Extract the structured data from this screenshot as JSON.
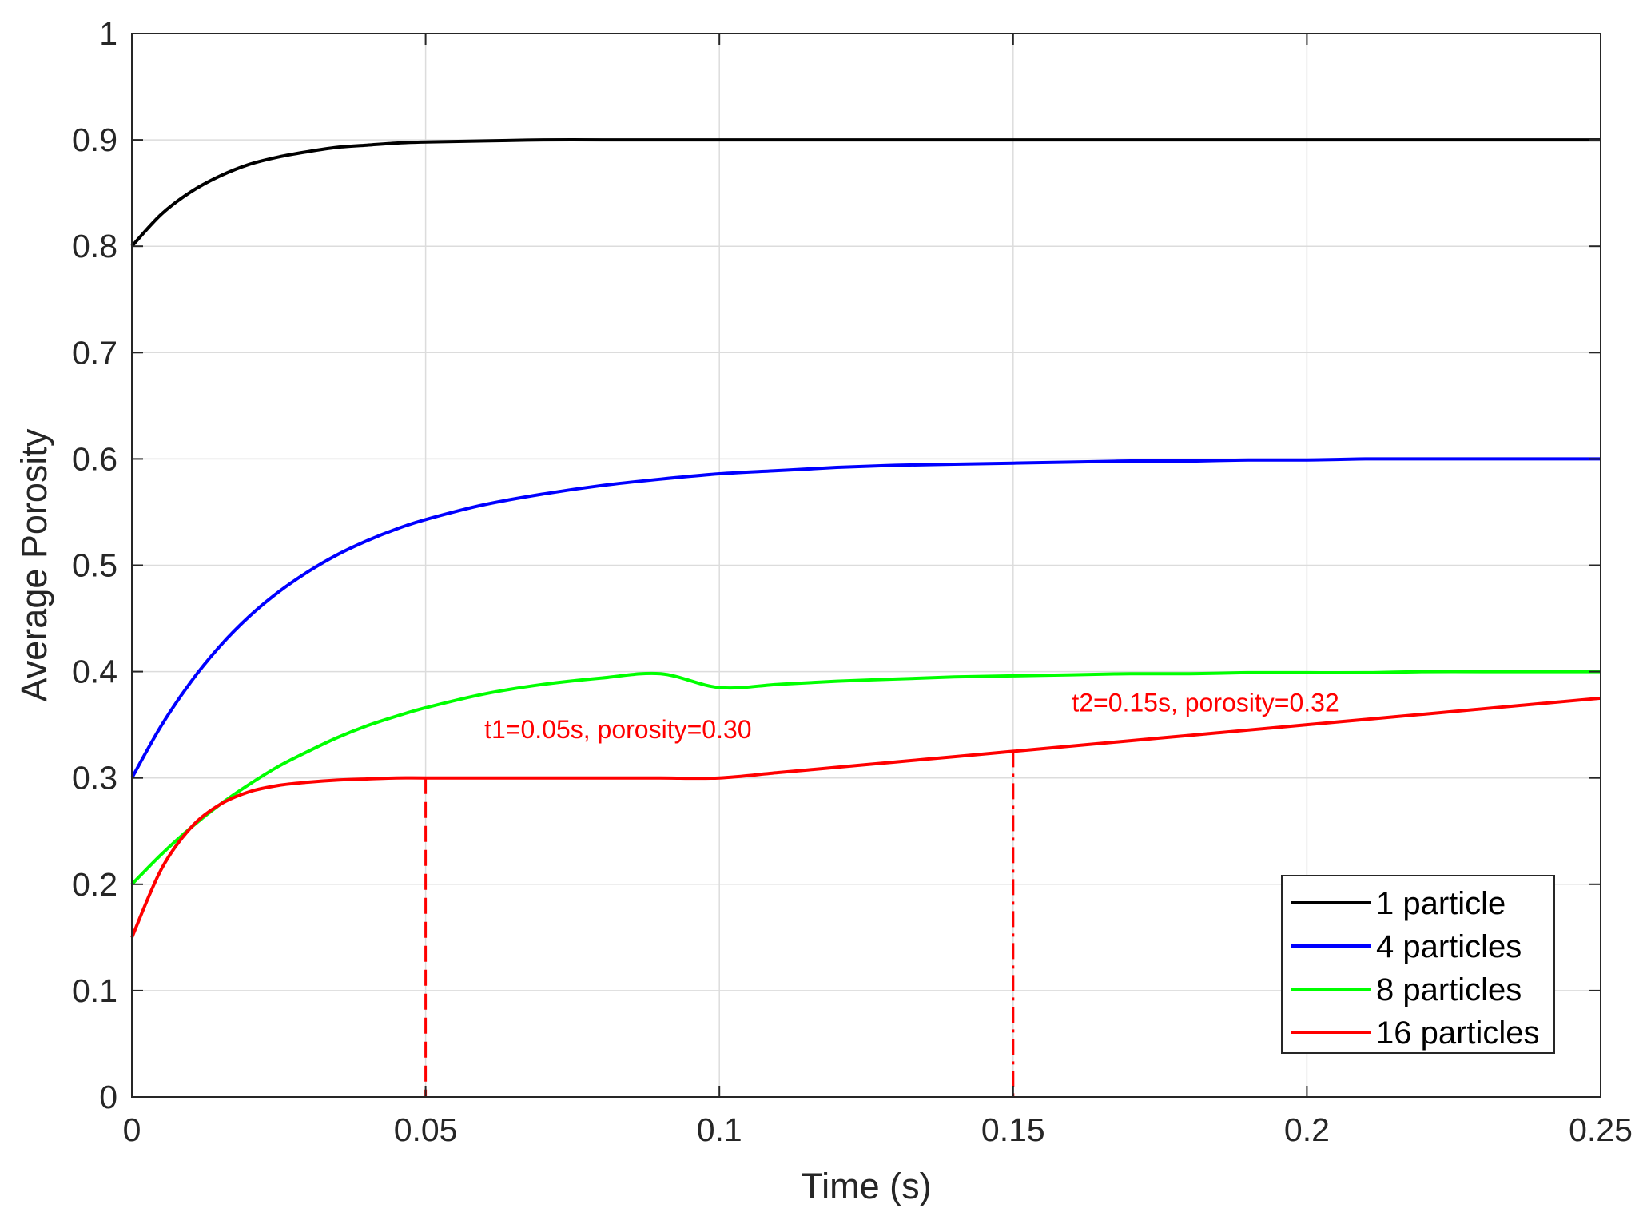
{
  "chart_data": {
    "type": "line",
    "xlabel": "Time (s)",
    "ylabel": "Average Porosity",
    "xlim": [
      0,
      0.25
    ],
    "ylim": [
      0,
      1
    ],
    "xticks": [
      0,
      0.05,
      0.1,
      0.15,
      0.2,
      0.25
    ],
    "xtick_labels": [
      "0",
      "0.05",
      "0.1",
      "0.15",
      "0.2",
      "0.25"
    ],
    "yticks": [
      0,
      0.1,
      0.2,
      0.3,
      0.4,
      0.5,
      0.6,
      0.7,
      0.8,
      0.9,
      1
    ],
    "ytick_labels": [
      "0",
      "0.1",
      "0.2",
      "0.3",
      "0.4",
      "0.5",
      "0.6",
      "0.7",
      "0.8",
      "0.9",
      "1"
    ],
    "grid": true,
    "legend_position": "bottom-right",
    "x": [
      0,
      0.005,
      0.01,
      0.015,
      0.02,
      0.025,
      0.03,
      0.035,
      0.04,
      0.045,
      0.05,
      0.06,
      0.07,
      0.08,
      0.09,
      0.1,
      0.11,
      0.12,
      0.13,
      0.14,
      0.15,
      0.16,
      0.17,
      0.18,
      0.19,
      0.2,
      0.21,
      0.22,
      0.23,
      0.24,
      0.25
    ],
    "series": [
      {
        "name": "1 particle",
        "color": "#000000",
        "values": [
          0.8,
          0.83,
          0.851,
          0.866,
          0.877,
          0.884,
          0.889,
          0.893,
          0.895,
          0.897,
          0.898,
          0.899,
          0.9,
          0.9,
          0.9,
          0.9,
          0.9,
          0.9,
          0.9,
          0.9,
          0.9,
          0.9,
          0.9,
          0.9,
          0.9,
          0.9,
          0.9,
          0.9,
          0.9,
          0.9,
          0.9
        ]
      },
      {
        "name": "4 particles",
        "color": "#0000ff",
        "values": [
          0.3,
          0.349,
          0.39,
          0.424,
          0.452,
          0.475,
          0.494,
          0.51,
          0.523,
          0.534,
          0.543,
          0.557,
          0.567,
          0.575,
          0.581,
          0.586,
          0.589,
          0.592,
          0.594,
          0.595,
          0.596,
          0.597,
          0.598,
          0.598,
          0.599,
          0.599,
          0.6,
          0.6,
          0.6,
          0.6,
          0.6
        ]
      },
      {
        "name": "8 particles",
        "color": "#00ff00",
        "values": [
          0.2,
          0.228,
          0.253,
          0.275,
          0.294,
          0.311,
          0.325,
          0.338,
          0.349,
          0.358,
          0.366,
          0.379,
          0.388,
          0.394,
          0.398,
          0.385,
          0.388,
          0.391,
          0.393,
          0.395,
          0.396,
          0.397,
          0.398,
          0.398,
          0.399,
          0.399,
          0.399,
          0.4,
          0.4,
          0.4,
          0.4
        ]
      },
      {
        "name": "16 particles",
        "color": "#ff0000",
        "values": [
          0.15,
          0.214,
          0.253,
          0.275,
          0.287,
          0.293,
          0.296,
          0.298,
          0.299,
          0.3,
          0.3,
          0.3,
          0.3,
          0.3,
          0.3,
          0.3,
          0.305,
          0.31,
          0.315,
          0.32,
          0.325,
          0.33,
          0.335,
          0.34,
          0.345,
          0.35,
          0.355,
          0.36,
          0.365,
          0.37,
          0.375
        ]
      }
    ],
    "vlines": [
      {
        "x": 0.05,
        "y_top": 0.3,
        "style": "dashed",
        "color": "#ff0000"
      },
      {
        "x": 0.15,
        "y_top": 0.325,
        "style": "dashdot",
        "color": "#ff0000"
      }
    ],
    "annotations": [
      {
        "text": "t1=0.05s, porosity=0.30",
        "x": 0.06,
        "y": 0.345
      },
      {
        "text": "t2=0.15s, porosity=0.32",
        "x": 0.16,
        "y": 0.37
      }
    ]
  }
}
